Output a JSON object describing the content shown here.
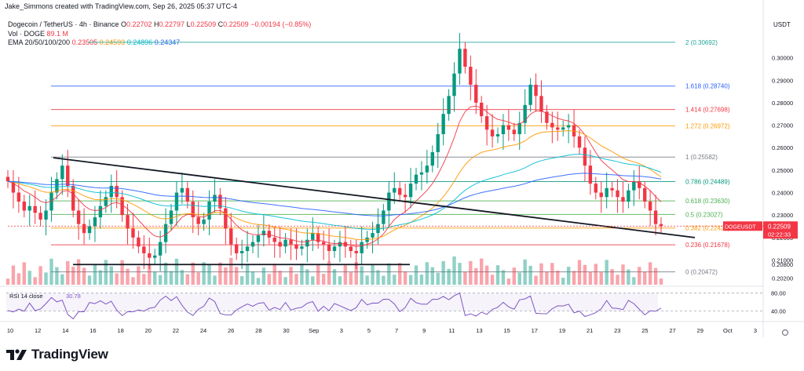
{
  "watermark": "Jake_Simmons created with TradingView.com, Sep 26, 2025 05:37 UTC-4",
  "legend": {
    "symbol": "Dogecoin / TetherUS · 4h · Binance",
    "o_label": "O",
    "o": "0.22702",
    "h_label": "H",
    "h": "0.22797",
    "l_label": "L",
    "l": "0.22509",
    "c_label": "C",
    "c": "0.22509",
    "change": "−0.00194 (−0.85%)",
    "vol_label": "Vol · DOGE",
    "vol": "89.1 M",
    "ema_label": "EMA 20/50/100/200",
    "ema_values": [
      "0.23505",
      "0.24593",
      "0.24896",
      "0.24347"
    ],
    "ema_colors": [
      "#f23645",
      "#ff9800",
      "#00bcd4",
      "#2962ff"
    ]
  },
  "price_axis": {
    "currency": "USDT",
    "ticks": [
      "0.30000",
      "0.29000",
      "0.28000",
      "0.27000",
      "0.26000",
      "0.25000",
      "0.24000",
      "0.23000",
      "0.22000",
      "0.21000",
      "0.20800",
      "0.20200"
    ]
  },
  "last_price": {
    "ticker": "DOGEUSDT",
    "value": "0.22509",
    "countdown": "02:22:33"
  },
  "rsi": {
    "label": "RSI 14 close",
    "value": "30.78",
    "ticks": [
      "80.00",
      "40.00"
    ]
  },
  "time_axis": [
    "10",
    "12",
    "14",
    "16",
    "18",
    "20",
    "22",
    "24",
    "26",
    "28",
    "30",
    "Sep",
    "3",
    "5",
    "7",
    "9",
    "11",
    "13",
    "15",
    "17",
    "19",
    "21",
    "23",
    "25",
    "27",
    "29",
    "Oct",
    "3"
  ],
  "brand": "TradingView",
  "chart_data": {
    "type": "candlestick",
    "title": "Dogecoin / TetherUS · 4h · Binance",
    "ylim": [
      0.199,
      0.31
    ],
    "fib_levels": [
      {
        "label": "2 (0.30692)",
        "value": 0.30692,
        "color": "#26a69a"
      },
      {
        "label": "1.618 (0.28740)",
        "value": 0.2874,
        "color": "#2962ff"
      },
      {
        "label": "1.414 (0.27698)",
        "value": 0.27698,
        "color": "#f23645"
      },
      {
        "label": "1.272 (0.26972)",
        "value": 0.26972,
        "color": "#ff9800"
      },
      {
        "label": "1 (0.25582)",
        "value": 0.25582,
        "color": "#787b86"
      },
      {
        "label": "0.786 (0.24489)",
        "value": 0.24489,
        "color": "#089981"
      },
      {
        "label": "0.618 (0.23630)",
        "value": 0.2363,
        "color": "#4caf50"
      },
      {
        "label": "0.5 (0.23027)",
        "value": 0.23027,
        "color": "#4caf50"
      },
      {
        "label": "0.382 (0.22424)",
        "value": 0.22424,
        "color": "#ff9800"
      },
      {
        "label": "0.236 (0.21678)",
        "value": 0.21678,
        "color": "#f23645"
      },
      {
        "label": "0 (0.20472)",
        "value": 0.20472,
        "color": "#787b86"
      }
    ],
    "close": [
      0.245,
      0.24,
      0.236,
      0.232,
      0.234,
      0.231,
      0.228,
      0.232,
      0.24,
      0.246,
      0.252,
      0.243,
      0.232,
      0.226,
      0.222,
      0.225,
      0.229,
      0.234,
      0.238,
      0.243,
      0.238,
      0.23,
      0.224,
      0.22,
      0.216,
      0.213,
      0.211,
      0.212,
      0.218,
      0.226,
      0.232,
      0.24,
      0.242,
      0.236,
      0.229,
      0.226,
      0.228,
      0.236,
      0.239,
      0.233,
      0.224,
      0.217,
      0.213,
      0.214,
      0.216,
      0.218,
      0.221,
      0.223,
      0.22,
      0.218,
      0.216,
      0.219,
      0.217,
      0.215,
      0.216,
      0.219,
      0.222,
      0.218,
      0.217,
      0.214,
      0.216,
      0.218,
      0.216,
      0.214,
      0.213,
      0.218,
      0.22,
      0.222,
      0.226,
      0.232,
      0.24,
      0.242,
      0.239,
      0.238,
      0.244,
      0.248,
      0.249,
      0.252,
      0.258,
      0.266,
      0.275,
      0.283,
      0.293,
      0.304,
      0.296,
      0.288,
      0.28,
      0.274,
      0.268,
      0.265,
      0.266,
      0.27,
      0.268,
      0.266,
      0.271,
      0.279,
      0.288,
      0.283,
      0.276,
      0.271,
      0.269,
      0.268,
      0.269,
      0.27,
      0.265,
      0.26,
      0.252,
      0.244,
      0.24,
      0.238,
      0.242,
      0.241,
      0.238,
      0.236,
      0.241,
      0.245,
      0.242,
      0.236,
      0.232,
      0.226,
      0.225
    ],
    "trendlines": [
      {
        "from": [
          0.0,
          0.2555
        ],
        "to": [
          1.0,
          0.22
        ],
        "note": "descending resistance"
      },
      {
        "from": [
          0.0,
          0.208
        ],
        "to": [
          0.55,
          0.208
        ],
        "note": "horizontal support"
      }
    ],
    "volume_note": "volume histogram below price",
    "rsi_levels": [
      80,
      40
    ]
  }
}
